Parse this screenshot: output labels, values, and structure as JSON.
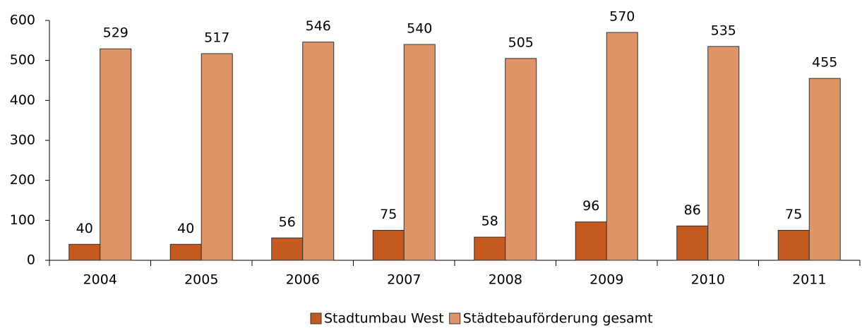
{
  "chart_data": {
    "type": "bar",
    "categories": [
      "2004",
      "2005",
      "2006",
      "2007",
      "2008",
      "2009",
      "2010",
      "2011"
    ],
    "series": [
      {
        "name": "Stadtumbau West",
        "color": "#c55a1e",
        "values": [
          40,
          40,
          56,
          75,
          58,
          96,
          86,
          75
        ]
      },
      {
        "name": "Städtebauförderung gesamt",
        "color": "#de9466",
        "values": [
          529,
          517,
          546,
          540,
          505,
          570,
          535,
          455
        ]
      }
    ],
    "ylim": [
      0,
      600
    ],
    "yticks": [
      0,
      100,
      200,
      300,
      400,
      500,
      600
    ],
    "grid": false,
    "legend": "bottom"
  }
}
